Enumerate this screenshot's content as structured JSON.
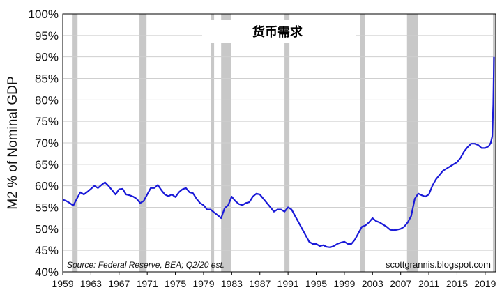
{
  "chart_data": {
    "type": "line",
    "title": "货币需求",
    "ylabel": "M2 % of Nominal GDP",
    "xlim": [
      1959,
      2020.5
    ],
    "ylim": [
      40,
      100
    ],
    "yticks": [
      40,
      45,
      50,
      55,
      60,
      65,
      70,
      75,
      80,
      85,
      90,
      95,
      100
    ],
    "ytick_labels": [
      "40%",
      "45%",
      "50%",
      "55%",
      "60%",
      "65%",
      "70%",
      "75%",
      "80%",
      "85%",
      "90%",
      "95%",
      "100%"
    ],
    "xtick_labels": [
      "1959",
      "1963",
      "1967",
      "1971",
      "1975",
      "1979",
      "1983",
      "1987",
      "1991",
      "1995",
      "1999",
      "2003",
      "2007",
      "2011",
      "2015",
      "2019"
    ],
    "source_note": "Source: Federal Reserve, BEA; Q2/20 est.",
    "credit": "scottgrannis.blogspot.com",
    "line_color": "#1a1ad8",
    "recession_color": "#c8c8c8",
    "recessions": [
      [
        1960.3,
        1961.1
      ],
      [
        1969.9,
        1970.9
      ],
      [
        1980.0,
        1980.5
      ],
      [
        1981.5,
        1982.9
      ],
      [
        1990.5,
        1991.2
      ],
      [
        2001.2,
        2001.9
      ],
      [
        2007.9,
        2009.5
      ],
      [
        2020.1,
        2020.5
      ]
    ],
    "series": [
      {
        "x": [
          1959.0,
          1959.5,
          1960.0,
          1960.5,
          1961.0,
          1961.5,
          1962.0,
          1962.5,
          1963.0,
          1963.5,
          1964.0,
          1964.5,
          1965.0,
          1965.5,
          1966.0,
          1966.5,
          1967.0,
          1967.5,
          1968.0,
          1968.5,
          1969.0,
          1969.5,
          1970.0,
          1970.5,
          1971.0,
          1971.5,
          1972.0,
          1972.5,
          1973.0,
          1973.5,
          1974.0,
          1974.5,
          1975.0,
          1975.5,
          1976.0,
          1976.5,
          1977.0,
          1977.5,
          1978.0,
          1978.5,
          1979.0,
          1979.5,
          1980.0,
          1980.5,
          1981.0,
          1981.5,
          1982.0,
          1982.5,
          1983.0,
          1983.5,
          1984.0,
          1984.5,
          1985.0,
          1985.5,
          1986.0,
          1986.5,
          1987.0,
          1987.5,
          1988.0,
          1988.5,
          1989.0,
          1989.5,
          1990.0,
          1990.5,
          1991.0,
          1991.5,
          1992.0,
          1992.5,
          1993.0,
          1993.5,
          1994.0,
          1994.5,
          1995.0,
          1995.5,
          1996.0,
          1996.5,
          1997.0,
          1997.5,
          1998.0,
          1998.5,
          1999.0,
          1999.5,
          2000.0,
          2000.5,
          2001.0,
          2001.5,
          2002.0,
          2002.5,
          2003.0,
          2003.5,
          2004.0,
          2004.5,
          2005.0,
          2005.5,
          2006.0,
          2006.5,
          2007.0,
          2007.5,
          2008.0,
          2008.5,
          2009.0,
          2009.5,
          2010.0,
          2010.5,
          2011.0,
          2011.5,
          2012.0,
          2012.5,
          2013.0,
          2013.5,
          2014.0,
          2014.5,
          2015.0,
          2015.5,
          2016.0,
          2016.5,
          2017.0,
          2017.5,
          2018.0,
          2018.5,
          2019.0,
          2019.5,
          2019.8,
          2020.0,
          2020.15,
          2020.25
        ],
        "y": [
          56.8,
          56.5,
          56.0,
          55.4,
          57.0,
          58.5,
          58.0,
          58.6,
          59.3,
          60.0,
          59.5,
          60.2,
          60.8,
          60.0,
          59.0,
          58.0,
          59.2,
          59.3,
          58.0,
          57.8,
          57.5,
          57.0,
          56.0,
          56.5,
          58.0,
          59.5,
          59.5,
          60.2,
          59.0,
          58.0,
          57.6,
          58.0,
          57.4,
          58.5,
          59.2,
          59.5,
          58.5,
          58.3,
          57.0,
          56.0,
          55.5,
          54.5,
          54.5,
          53.8,
          53.2,
          52.5,
          54.8,
          55.5,
          57.5,
          56.5,
          55.8,
          55.5,
          56.0,
          56.2,
          57.5,
          58.2,
          58.0,
          57.0,
          56.0,
          55.0,
          54.0,
          54.5,
          54.5,
          54.0,
          55.0,
          54.5,
          53.0,
          51.5,
          50.0,
          48.5,
          47.0,
          46.5,
          46.5,
          46.0,
          46.2,
          45.8,
          45.7,
          46.0,
          46.5,
          46.8,
          47.0,
          46.5,
          46.5,
          47.5,
          49.0,
          50.5,
          50.8,
          51.5,
          52.5,
          51.8,
          51.5,
          51.0,
          50.5,
          49.8,
          49.7,
          49.8,
          50.0,
          50.5,
          51.5,
          53.0,
          57.0,
          58.2,
          57.8,
          57.5,
          58.0,
          60.0,
          61.5,
          62.5,
          63.5,
          64.0,
          64.5,
          65.0,
          65.5,
          66.5,
          68.0,
          69.0,
          69.8,
          69.8,
          69.5,
          68.8,
          68.8,
          69.2,
          70.0,
          71.5,
          79.0,
          90.0
        ]
      }
    ]
  }
}
